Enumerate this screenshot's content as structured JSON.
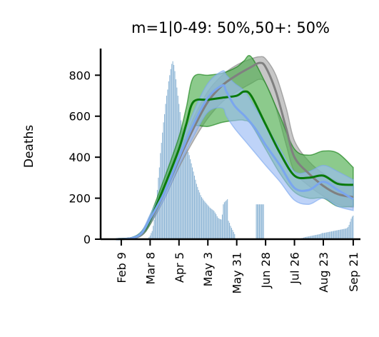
{
  "chart_data": {
    "type": "area",
    "title": "m=1|0-49: 50%,50+: 50%",
    "xlabel": "",
    "ylabel": "Deaths",
    "x_ticks": [
      "Feb 9",
      "Mar 8",
      "Apr 5",
      "May 3",
      "May 31",
      "Jun 28",
      "Jul 26",
      "Aug 23",
      "Sep 21"
    ],
    "x_tick_days": [
      0,
      28,
      56,
      84,
      112,
      140,
      168,
      196,
      225
    ],
    "y_ticks": [
      0,
      200,
      400,
      600,
      800
    ],
    "ylim": [
      0,
      930
    ],
    "xlim": [
      -20,
      232
    ],
    "colors": {
      "bars": "#8fb6d6",
      "gray_line": "#808080",
      "gray_band": "#a9a9a9",
      "green_line": "#0a7a0a",
      "green_band": "#4fae4f",
      "blue_line": "#7aa6ee",
      "blue_band": "#9bbcf4"
    },
    "bars": {
      "description": "daily observed deaths",
      "segments": [
        {
          "from_day": 25,
          "to_day": 29,
          "values": [
            2,
            5,
            10,
            18,
            30
          ]
        },
        {
          "from_day": 30,
          "to_day": 54,
          "values": [
            40,
            65,
            95,
            135,
            180,
            240,
            300,
            350,
            420,
            470,
            520,
            570,
            610,
            660,
            700,
            730,
            770,
            800,
            830,
            855,
            868,
            850,
            820,
            780,
            740
          ]
        },
        {
          "from_day": 55,
          "to_day": 79,
          "values": [
            700,
            660,
            620,
            580,
            545,
            515,
            490,
            470,
            455,
            440,
            425,
            410,
            390,
            370,
            350,
            330,
            310,
            290,
            270,
            255,
            240,
            228,
            215,
            205,
            198
          ]
        },
        {
          "from_day": 80,
          "to_day": 103,
          "values": [
            190,
            184,
            178,
            172,
            166,
            160,
            154,
            150,
            146,
            142,
            138,
            130,
            122,
            112,
            104,
            100,
            98,
            96,
            120,
            170,
            180,
            185,
            190,
            195
          ]
        },
        {
          "from_day": 104,
          "to_day": 110,
          "values": [
            90,
            80,
            65,
            55,
            45,
            35,
            25
          ]
        },
        {
          "from_day": 131,
          "to_day": 138,
          "values": [
            170,
            170,
            170,
            170,
            170,
            170,
            170,
            170
          ]
        },
        {
          "from_day": 175,
          "to_day": 195,
          "values": [
            5,
            6,
            8,
            10,
            11,
            12,
            13,
            14,
            15,
            16,
            17,
            18,
            19,
            20,
            21,
            22,
            23,
            24,
            25,
            28,
            30
          ]
        },
        {
          "from_day": 196,
          "to_day": 225,
          "values": [
            30,
            31,
            32,
            33,
            34,
            35,
            36,
            37,
            38,
            39,
            40,
            41,
            42,
            43,
            44,
            45,
            46,
            47,
            48,
            49,
            50,
            51,
            52,
            55,
            60,
            70,
            85,
            100,
            110,
            115
          ]
        }
      ]
    },
    "series": [
      {
        "color_key": "gray",
        "x": [
          -5,
          10,
          20,
          28,
          42,
          56,
          70,
          84,
          98,
          112,
          126,
          134,
          140,
          150,
          160,
          168,
          182,
          196,
          210,
          225
        ],
        "median": [
          0,
          5,
          25,
          90,
          230,
          390,
          540,
          670,
          750,
          800,
          840,
          860,
          840,
          720,
          540,
          400,
          320,
          260,
          220,
          205
        ],
        "lower": [
          0,
          3,
          18,
          70,
          200,
          350,
          480,
          590,
          670,
          720,
          760,
          780,
          760,
          640,
          460,
          330,
          260,
          210,
          170,
          155
        ],
        "upper": [
          0,
          8,
          35,
          110,
          260,
          420,
          590,
          720,
          800,
          850,
          880,
          890,
          880,
          800,
          640,
          480,
          380,
          320,
          280,
          260
        ]
      },
      {
        "color_key": "green",
        "x": [
          -5,
          10,
          20,
          28,
          42,
          56,
          63,
          70,
          84,
          98,
          112,
          119,
          126,
          140,
          154,
          168,
          182,
          196,
          210,
          225
        ],
        "median": [
          0,
          5,
          30,
          95,
          260,
          440,
          560,
          670,
          680,
          690,
          700,
          720,
          700,
          560,
          420,
          310,
          300,
          310,
          270,
          265
        ],
        "lower": [
          0,
          3,
          20,
          75,
          220,
          380,
          480,
          550,
          550,
          570,
          580,
          580,
          560,
          440,
          320,
          230,
          200,
          200,
          160,
          160
        ],
        "upper": [
          0,
          8,
          40,
          115,
          300,
          500,
          640,
          790,
          800,
          810,
          840,
          870,
          890,
          760,
          600,
          440,
          410,
          430,
          420,
          350
        ]
      },
      {
        "color_key": "blue",
        "x": [
          -5,
          10,
          20,
          28,
          42,
          56,
          70,
          84,
          98,
          102,
          110,
          120,
          130,
          140,
          154,
          168,
          182,
          196,
          210,
          225
        ],
        "median": [
          0,
          5,
          30,
          100,
          230,
          400,
          560,
          690,
          750,
          720,
          650,
          600,
          540,
          460,
          360,
          250,
          240,
          280,
          240,
          195
        ],
        "lower": [
          0,
          3,
          20,
          80,
          200,
          360,
          500,
          620,
          640,
          600,
          540,
          480,
          420,
          360,
          280,
          190,
          170,
          200,
          160,
          140
        ],
        "upper": [
          0,
          8,
          40,
          120,
          260,
          440,
          620,
          760,
          820,
          800,
          760,
          720,
          640,
          560,
          440,
          330,
          330,
          360,
          330,
          290
        ]
      }
    ]
  }
}
